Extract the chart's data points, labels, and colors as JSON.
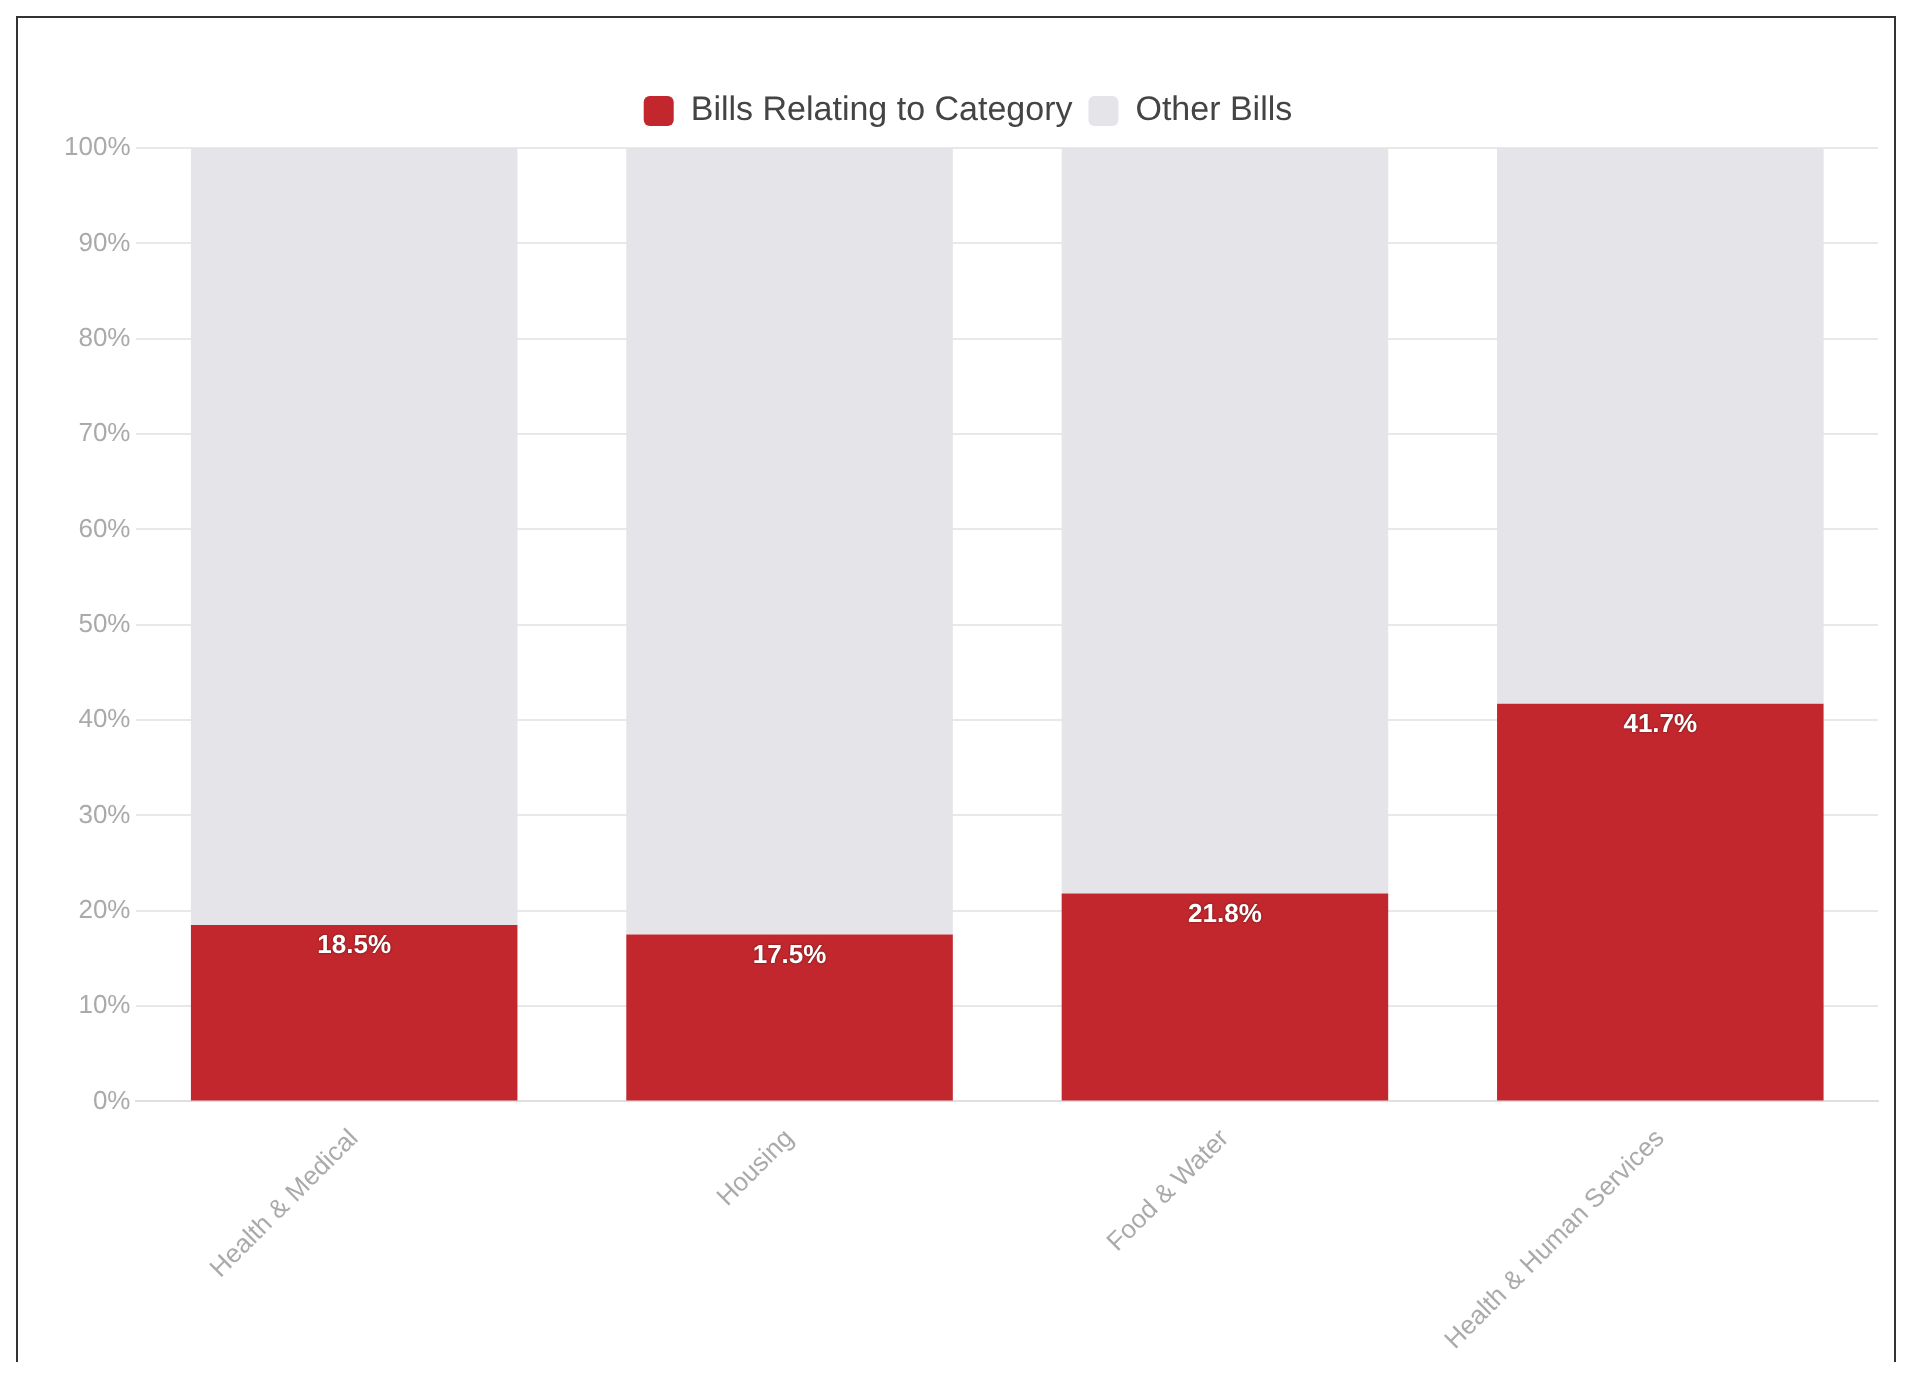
{
  "chart_data": {
    "type": "bar",
    "stacked": true,
    "categories": [
      "Health & Medical",
      "Housing",
      "Food & Water",
      "Health & Human Services"
    ],
    "series": [
      {
        "name": "Bills Relating to Category",
        "color": "#c1272d",
        "values": [
          18.5,
          17.5,
          21.8,
          41.7
        ],
        "value_labels": [
          "18.5%",
          "17.5%",
          "21.8%",
          "41.7%"
        ]
      },
      {
        "name": "Other Bills",
        "color": "#e4e4e9",
        "values": [
          81.5,
          82.5,
          78.2,
          58.3
        ]
      }
    ],
    "ylim": [
      0,
      100
    ],
    "yticks": [
      {
        "value": 0,
        "label": "0%"
      },
      {
        "value": 10,
        "label": "10%"
      },
      {
        "value": 20,
        "label": "20%"
      },
      {
        "value": 30,
        "label": "30%"
      },
      {
        "value": 40,
        "label": "40%"
      },
      {
        "value": 50,
        "label": "50%"
      },
      {
        "value": 60,
        "label": "60%"
      },
      {
        "value": 70,
        "label": "70%"
      },
      {
        "value": 80,
        "label": "80%"
      },
      {
        "value": 90,
        "label": "90%"
      },
      {
        "value": 100,
        "label": "100%"
      }
    ],
    "grid": "y",
    "legend": "top"
  }
}
